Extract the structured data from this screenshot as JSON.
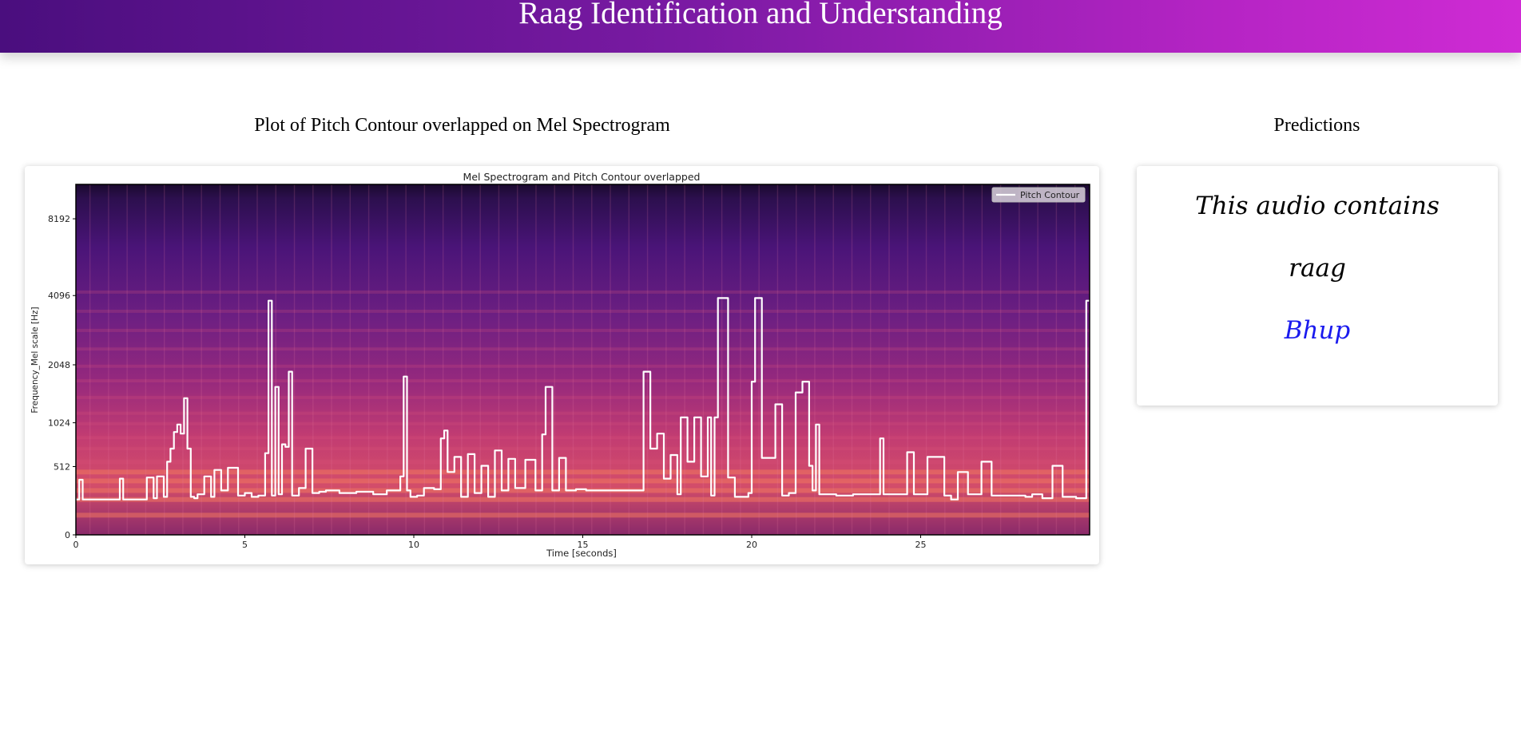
{
  "header": {
    "title": "Raag Identification and Understanding"
  },
  "plot_section": {
    "heading": "Plot of Pitch Contour overlapped on Mel Spectrogram"
  },
  "predictions_section": {
    "heading": "Predictions",
    "line1": "This audio contains",
    "line2": "raag",
    "raag_name": "Bhup"
  },
  "colors": {
    "header_gradient_start": "#4a0e7e",
    "header_gradient_end": "#cf2bd4",
    "raag_name": "#1a1aee",
    "pitch_contour": "#ffffff"
  },
  "chart_data": {
    "type": "heatmap",
    "title": "Mel Spectrogram and Pitch Contour overlapped",
    "xlabel": "Time [seconds]",
    "ylabel": "Frequency_Mel scale [Hz]",
    "xlim": [
      0,
      30
    ],
    "x_ticks": [
      0,
      5,
      10,
      15,
      20,
      25
    ],
    "y_ticks": [
      0,
      512,
      1024,
      2048,
      4096,
      8192
    ],
    "y_scale": "mel",
    "legend": {
      "entries": [
        "Pitch Contour"
      ],
      "placement": "top-right"
    },
    "colormap": "magma",
    "series": [
      {
        "name": "Pitch Contour",
        "type": "line",
        "x": [
          0.0,
          0.1,
          0.2,
          1.2,
          1.3,
          1.4,
          2.0,
          2.1,
          2.3,
          2.4,
          2.6,
          2.7,
          2.8,
          2.9,
          3.0,
          3.1,
          3.2,
          3.3,
          3.4,
          3.5,
          3.6,
          3.8,
          4.0,
          4.1,
          4.3,
          4.5,
          4.8,
          5.0,
          5.2,
          5.4,
          5.6,
          5.7,
          5.8,
          5.9,
          6.0,
          6.1,
          6.2,
          6.3,
          6.4,
          6.6,
          6.8,
          7.0,
          7.2,
          7.4,
          7.8,
          8.3,
          8.8,
          9.2,
          9.6,
          9.7,
          9.8,
          9.9,
          10.1,
          10.3,
          10.6,
          10.8,
          10.9,
          11.0,
          11.2,
          11.4,
          11.6,
          11.8,
          12.0,
          12.2,
          12.4,
          12.6,
          12.8,
          13.0,
          13.3,
          13.6,
          13.8,
          13.9,
          14.1,
          14.3,
          14.5,
          14.8,
          15.1,
          15.6,
          16.2,
          16.7,
          16.8,
          17.0,
          17.2,
          17.4,
          17.6,
          17.8,
          17.9,
          18.1,
          18.3,
          18.5,
          18.7,
          18.8,
          18.9,
          19.0,
          19.3,
          19.5,
          19.6,
          19.9,
          20.0,
          20.1,
          20.3,
          20.5,
          20.7,
          20.9,
          21.1,
          21.3,
          21.5,
          21.7,
          21.8,
          21.9,
          22.0,
          22.2,
          22.5,
          23.0,
          23.5,
          23.8,
          23.9,
          24.1,
          24.6,
          24.8,
          25.2,
          25.7,
          25.9,
          26.1,
          26.4,
          26.8,
          27.1,
          27.6,
          28.1,
          28.3,
          28.6,
          28.9,
          29.2,
          29.6,
          29.9,
          30.0
        ],
        "y": [
          230,
          390,
          230,
          230,
          400,
          230,
          230,
          410,
          240,
          420,
          250,
          560,
          700,
          900,
          1000,
          880,
          1400,
          700,
          250,
          240,
          270,
          420,
          250,
          480,
          300,
          500,
          260,
          280,
          250,
          260,
          650,
          3900,
          260,
          1600,
          270,
          750,
          720,
          1900,
          260,
          320,
          700,
          280,
          290,
          300,
          280,
          290,
          270,
          300,
          420,
          1800,
          300,
          250,
          260,
          320,
          310,
          820,
          920,
          460,
          610,
          250,
          640,
          280,
          520,
          250,
          680,
          300,
          590,
          320,
          580,
          300,
          870,
          1600,
          300,
          600,
          300,
          310,
          300,
          300,
          300,
          300,
          1900,
          700,
          880,
          400,
          630,
          270,
          1100,
          560,
          1100,
          420,
          1100,
          260,
          1100,
          4000,
          410,
          250,
          250,
          280,
          1700,
          4000,
          600,
          600,
          1300,
          260,
          280,
          1500,
          1700,
          520,
          300,
          1000,
          270,
          270,
          260,
          270,
          270,
          820,
          270,
          270,
          660,
          270,
          610,
          260,
          230,
          460,
          270,
          560,
          260,
          260,
          250,
          270,
          240,
          520,
          250,
          240,
          3900,
          3900
        ]
      }
    ]
  }
}
